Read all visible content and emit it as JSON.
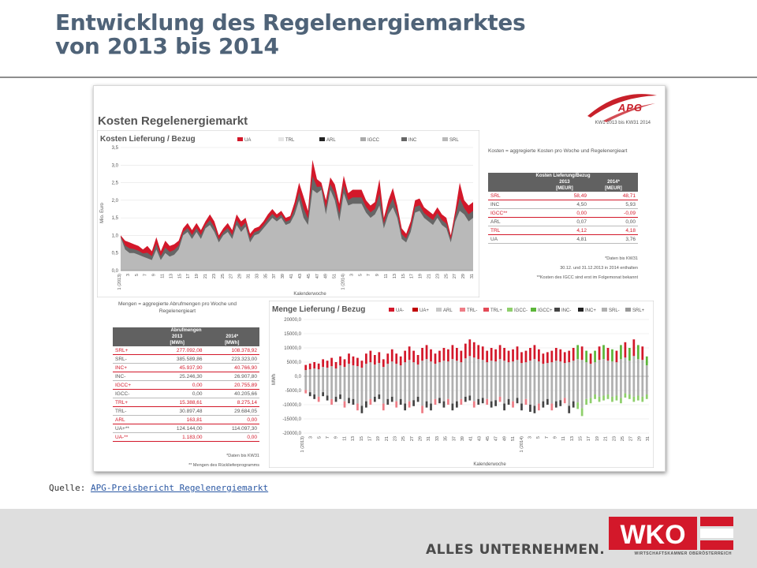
{
  "slide": {
    "title_line1": "Entwicklung des Regelenergiemarktes",
    "title_line2": "von 2013 bis 2014"
  },
  "report": {
    "logo_text": "APG",
    "title": "Kosten Regelenergiemarkt",
    "period": "KW1 2013 bis KW31 2014",
    "costs_note": "Kosten = aggregierte Kosten pro Woche und Regelenergieart",
    "mengen_note": "Mengen = aggregierte Abrufmengen pro Woche und Regelenergieart",
    "costs_footnote_1": "*Daten bis KW31",
    "costs_footnote_2": "30.12. und 31.12.2013 in 2014 enthalten",
    "costs_footnote_3": "**Kosten des IGCC sind erst im Folgemonat bekannt",
    "mengen_footnote_1": "*Daten bis KW31",
    "mengen_footnote_2": "** Mengen des Rücklieferprogramms"
  },
  "costs_table": {
    "header": "Kosten Lieferung/Bezug",
    "year_2013": "2013",
    "year_2014": "2014*",
    "unit": "[MEUR]",
    "rows": [
      {
        "label": "SRL",
        "v2013": "58,49",
        "v2014": "48,71",
        "highlight": true
      },
      {
        "label": "INC",
        "v2013": "4,50",
        "v2014": "5,93",
        "highlight": false
      },
      {
        "label": "IGCC**",
        "v2013": "0,00",
        "v2014": "-0,09",
        "highlight": true
      },
      {
        "label": "ARL",
        "v2013": "0,07",
        "v2014": "0,00",
        "highlight": false
      },
      {
        "label": "TRL",
        "v2013": "4,12",
        "v2014": "4,18",
        "highlight": true
      },
      {
        "label": "UA",
        "v2013": "4,81",
        "v2014": "3,76",
        "highlight": false
      }
    ]
  },
  "mengen_table": {
    "header": "Abrufmengen",
    "year_2013": "2013",
    "year_2014": "2014*",
    "unit": "[MWh]",
    "rows": [
      {
        "label": "SRL+",
        "v2013": "277.092,08",
        "v2014": "108.378,92",
        "highlight": true
      },
      {
        "label": "SRL-",
        "v2013": "385.589,86",
        "v2014": "223.323,00",
        "highlight": false
      },
      {
        "label": "INC+",
        "v2013": "45.937,90",
        "v2014": "40.766,90",
        "highlight": true
      },
      {
        "label": "INC-",
        "v2013": "25.246,30",
        "v2014": "26.907,80",
        "highlight": false
      },
      {
        "label": "IGCC+",
        "v2013": "0,00",
        "v2014": "20.755,89",
        "highlight": true
      },
      {
        "label": "IGCC-",
        "v2013": "0,00",
        "v2014": "40.205,66",
        "highlight": false
      },
      {
        "label": "TRL+",
        "v2013": "15.388,61",
        "v2014": "8.275,14",
        "highlight": true
      },
      {
        "label": "TRL-",
        "v2013": "30.897,48",
        "v2014": "29.684,05",
        "highlight": false
      },
      {
        "label": "ARL",
        "v2013": "163,81",
        "v2014": "0,00",
        "highlight": true
      },
      {
        "label": "UA+**",
        "v2013": "124.144,00",
        "v2014": "114.097,30",
        "highlight": false
      },
      {
        "label": "UA-**",
        "v2013": "1.183,00",
        "v2014": "0,00",
        "highlight": true
      }
    ]
  },
  "chart_data": [
    {
      "type": "area",
      "title": "Kosten Lieferung / Bezug",
      "ylabel": "Mio. Euro",
      "xlabel": "Kalenderwoche",
      "ylim": [
        0,
        3.5
      ],
      "yticks": [
        "0,0",
        "0,5",
        "1,0",
        "1,5",
        "2,0",
        "2,5",
        "3,0",
        "3,5"
      ],
      "xticks": [
        "1 (2013)",
        "3",
        "5",
        "7",
        "9",
        "11",
        "13",
        "15",
        "17",
        "19",
        "21",
        "23",
        "25",
        "27",
        "29",
        "31",
        "33",
        "35",
        "37",
        "39",
        "41",
        "43",
        "45",
        "47",
        "49",
        "51",
        "1 (2014)",
        "3",
        "5",
        "7",
        "9",
        "11",
        "13",
        "15",
        "17",
        "19",
        "21",
        "23",
        "25",
        "27",
        "29",
        "31"
      ],
      "legend_position": "top",
      "grid": true,
      "stack_order": [
        "SRL",
        "INC",
        "IGCC",
        "ARL",
        "TRL",
        "UA"
      ],
      "series": [
        {
          "name": "UA",
          "color": "#d3182a"
        },
        {
          "name": "TRL",
          "color": "#e6e6e6"
        },
        {
          "name": "ARL",
          "color": "#222222"
        },
        {
          "name": "IGCC",
          "color": "#aaaaaa"
        },
        {
          "name": "INC",
          "color": "#666666"
        },
        {
          "name": "SRL",
          "color": "#b9b9b9"
        }
      ],
      "srl_approx": [
        0.95,
        0.6,
        0.5,
        0.5,
        0.45,
        0.4,
        0.35,
        0.3,
        0.6,
        0.3,
        0.5,
        0.4,
        0.45,
        0.6,
        1.0,
        1.1,
        0.9,
        1.1,
        0.9,
        1.2,
        1.3,
        1.1,
        0.8,
        1.0,
        1.1,
        0.9,
        1.3,
        1.1,
        1.25,
        0.8,
        1.0,
        1.05,
        1.2,
        1.35,
        1.5,
        1.4,
        1.5,
        1.3,
        1.35,
        1.6,
        2.0,
        1.5,
        1.3,
        2.3,
        2.2,
        2.3,
        1.6,
        2.3,
        2.0,
        1.4,
        2.2,
        1.85,
        1.9,
        1.9,
        1.9,
        1.65,
        1.5,
        1.6,
        1.85,
        1.2,
        1.6,
        1.8,
        1.5,
        0.9,
        0.8,
        1.1,
        1.65,
        1.7,
        1.5,
        1.4,
        1.3,
        1.5,
        1.3,
        1.2,
        0.8,
        1.4,
        1.7,
        1.6,
        1.4,
        1.5
      ],
      "total_approx": [
        1.0,
        0.85,
        0.8,
        0.75,
        0.7,
        0.6,
        0.7,
        0.55,
        0.95,
        0.55,
        0.85,
        0.7,
        0.75,
        0.85,
        1.2,
        1.35,
        1.15,
        1.35,
        1.15,
        1.4,
        1.6,
        1.4,
        1.0,
        1.2,
        1.35,
        1.15,
        1.6,
        1.4,
        1.5,
        1.05,
        1.2,
        1.25,
        1.4,
        1.6,
        1.75,
        1.6,
        1.7,
        1.5,
        1.55,
        1.95,
        2.5,
        2.1,
        1.7,
        3.15,
        2.6,
        2.5,
        2.0,
        2.65,
        2.45,
        1.9,
        2.7,
        2.2,
        2.3,
        2.3,
        2.3,
        2.0,
        1.85,
        1.95,
        2.6,
        1.5,
        2.0,
        2.35,
        1.85,
        1.2,
        1.05,
        1.4,
        2.0,
        2.05,
        1.8,
        1.7,
        1.6,
        1.8,
        1.6,
        1.5,
        1.0,
        1.7,
        2.5,
        2.0,
        1.85,
        1.95
      ]
    },
    {
      "type": "bar",
      "title": "Menge Lieferung / Bezug",
      "ylabel": "MWh",
      "xlabel": "Kalenderwoche",
      "ylim": [
        -20000,
        20000
      ],
      "yticks": [
        "-20000,0",
        "-15000,0",
        "-10000,0",
        "-5000,0",
        "0,0",
        "5000,0",
        "10000,0",
        "15000,0",
        "20000,0"
      ],
      "xticks": [
        "1 (2013)",
        "3",
        "5",
        "7",
        "9",
        "11",
        "13",
        "15",
        "17",
        "19",
        "21",
        "23",
        "25",
        "27",
        "29",
        "31",
        "33",
        "35",
        "37",
        "39",
        "41",
        "43",
        "45",
        "47",
        "49",
        "51",
        "1 (2014)",
        "3",
        "5",
        "7",
        "9",
        "11",
        "13",
        "15",
        "17",
        "19",
        "21",
        "23",
        "25",
        "27",
        "29",
        "31"
      ],
      "legend_position": "top",
      "grid": true,
      "series": [
        {
          "name": "UA-",
          "color": "#d3182a"
        },
        {
          "name": "UA+",
          "color": "#c00000"
        },
        {
          "name": "ARL",
          "color": "#c8c8c8"
        },
        {
          "name": "TRL-",
          "color": "#ee7d86"
        },
        {
          "name": "TRL+",
          "color": "#e34a56"
        },
        {
          "name": "IGCC-",
          "color": "#8fcf6c"
        },
        {
          "name": "IGCC+",
          "color": "#5cb63a"
        },
        {
          "name": "INC-",
          "color": "#444444"
        },
        {
          "name": "INC+",
          "color": "#222222"
        },
        {
          "name": "SRL-",
          "color": "#b0b0b0"
        },
        {
          "name": "SRL+",
          "color": "#999999"
        }
      ],
      "pos_approx": [
        4000,
        4500,
        5000,
        4500,
        6000,
        5500,
        6500,
        5000,
        7000,
        6000,
        8000,
        7000,
        6500,
        5500,
        8000,
        9000,
        7500,
        8500,
        6000,
        8000,
        9500,
        8000,
        7000,
        9000,
        10500,
        9000,
        7500,
        10000,
        11000,
        9500,
        8000,
        9000,
        10000,
        9500,
        11000,
        10000,
        9000,
        11500,
        13000,
        12000,
        11000,
        10500,
        9000,
        10000,
        9500,
        11000,
        10000,
        9000,
        9500,
        10500,
        8500,
        9000,
        10000,
        11000,
        9500,
        8000,
        8500,
        9000,
        10000,
        9500,
        8500,
        9000,
        10000,
        11000,
        10500,
        9000,
        8000,
        9000,
        10500,
        11000,
        10000,
        9500,
        9000,
        11000,
        12000,
        10000,
        13000,
        11000,
        10500,
        7000
      ],
      "neg_approx": [
        -6000,
        -7000,
        -8000,
        -9000,
        -7000,
        -8500,
        -10000,
        -9000,
        -8000,
        -11000,
        -9500,
        -10000,
        -12000,
        -13000,
        -11000,
        -10000,
        -9000,
        -8000,
        -12000,
        -10000,
        -9000,
        -11000,
        -10000,
        -12000,
        -11000,
        -10500,
        -9000,
        -13000,
        -11000,
        -12000,
        -10000,
        -9500,
        -11000,
        -10000,
        -12000,
        -11000,
        -10000,
        -9000,
        -8500,
        -11000,
        -10000,
        -9500,
        -10000,
        -11000,
        -10500,
        -9000,
        -12000,
        -10000,
        -11000,
        -9500,
        -12000,
        -10000,
        -12500,
        -13000,
        -12000,
        -11000,
        -10000,
        -12000,
        -11000,
        -10500,
        -9500,
        -13000,
        -11000,
        -11500,
        -14000,
        -10000,
        -9500,
        -8000,
        -9000,
        -8500,
        -8000,
        -9000,
        -8500,
        -9500,
        -7500,
        -8000,
        -9000,
        -8500,
        -9000,
        -8000
      ]
    }
  ],
  "source": {
    "label": "Quelle:",
    "link_text": "APG-Preisbericht  Regelenergiemarkt"
  },
  "footer": {
    "slogan": "ALLES UNTERNEHMEN.",
    "logo_text": "WKO",
    "logo_sub": "WIRTSCHAFTSKAMMER OBERÖSTERREICH"
  }
}
